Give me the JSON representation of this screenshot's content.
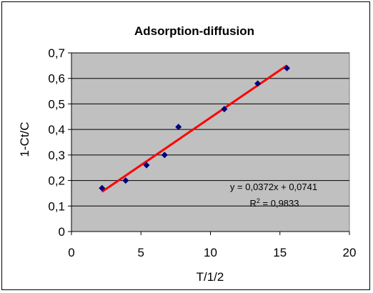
{
  "chart_data": {
    "type": "scatter",
    "title": "Adsorption-diffusion",
    "xlabel": "T/1/2",
    "ylabel": "1-Ct/C",
    "xlim": [
      0,
      20
    ],
    "ylim": [
      0,
      0.7
    ],
    "x_ticks": [
      "0",
      "5",
      "10",
      "15",
      "20"
    ],
    "y_ticks": [
      "0",
      "0,1",
      "0,2",
      "0,3",
      "0,4",
      "0,5",
      "0,6",
      "0,7"
    ],
    "grid": "horizontal",
    "plot_background": "#c0c0c0",
    "point_color": "#000080",
    "series": [
      {
        "x": [
          2.2,
          3.9,
          5.4,
          6.7,
          7.7,
          11.0,
          13.4,
          15.5
        ],
        "y": [
          0.17,
          0.2,
          0.26,
          0.3,
          0.41,
          0.48,
          0.58,
          0.64
        ]
      }
    ],
    "trendline": {
      "color": "#ff0000",
      "x_range": [
        2.2,
        15.5
      ],
      "slope": 0.0372,
      "intercept": 0.0741,
      "equation": "y = 0,0372x + 0,0741",
      "r2_prefix": "R",
      "r2_sup": "2",
      "r2_value": " = 0,9833"
    }
  }
}
